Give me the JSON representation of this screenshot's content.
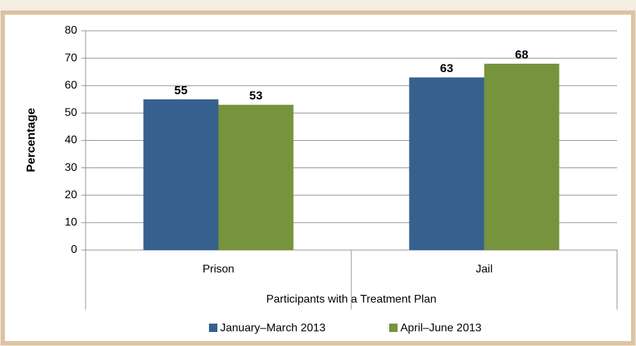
{
  "chart_data": {
    "type": "bar",
    "categories": [
      "Prison",
      "Jail"
    ],
    "series": [
      {
        "name": "January–March 2013",
        "color": "#36618f",
        "values": [
          55,
          63
        ]
      },
      {
        "name": "April–June 2013",
        "color": "#77933c",
        "values": [
          53,
          68
        ]
      }
    ],
    "x_label": "Participants with a Treatment Plan",
    "y_label": "Percentage",
    "ylim": [
      0,
      80
    ],
    "yticks": [
      0,
      10,
      20,
      30,
      40,
      50,
      60,
      70,
      80
    ],
    "grid": true,
    "legend": "bottom"
  }
}
